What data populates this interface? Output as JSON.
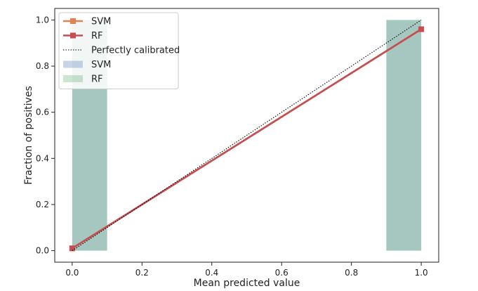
{
  "chart_data": {
    "type": "line",
    "xlabel": "Mean predicted value",
    "ylabel": "Fraction of positives",
    "xlim": [
      -0.05,
      1.05
    ],
    "ylim": [
      -0.05,
      1.05
    ],
    "xticks": [
      "0.0",
      "0.2",
      "0.4",
      "0.6",
      "0.8",
      "1.0"
    ],
    "yticks": [
      "0.0",
      "0.2",
      "0.4",
      "0.6",
      "0.8",
      "1.0"
    ],
    "grid": false,
    "legend_position": "top-left",
    "series": [
      {
        "name": "SVM",
        "kind": "line",
        "color": "#dd8452",
        "x": [
          0.0,
          1.0
        ],
        "y": [
          0.01,
          0.96
        ]
      },
      {
        "name": "RF",
        "kind": "line",
        "color": "#c44e52",
        "x": [
          0.0,
          1.0
        ],
        "y": [
          0.01,
          0.96
        ]
      },
      {
        "name": "Perfectly calibrated",
        "kind": "reference",
        "color": "#000000",
        "x": [
          0.0,
          1.0
        ],
        "y": [
          0.0,
          1.0
        ]
      }
    ],
    "histograms": [
      {
        "name": "SVM",
        "color": "#4c72b0",
        "bins": [
          [
            0.0,
            0.1,
            1.0
          ],
          [
            0.9,
            1.0,
            1.0
          ]
        ]
      },
      {
        "name": "RF",
        "color": "#55a868",
        "bins": [
          [
            0.0,
            0.1,
            1.0
          ],
          [
            0.9,
            1.0,
            1.0
          ]
        ]
      }
    ],
    "legend": {
      "items": [
        {
          "label": "SVM",
          "kind": "line",
          "color": "#dd8452"
        },
        {
          "label": "RF",
          "kind": "line",
          "color": "#c44e52"
        },
        {
          "label": "Perfectly calibrated",
          "kind": "dotted",
          "color": "#000000"
        },
        {
          "label": "SVM",
          "kind": "patch",
          "color": "#4c72b0"
        },
        {
          "label": "RF",
          "kind": "patch",
          "color": "#55a868"
        }
      ]
    }
  }
}
